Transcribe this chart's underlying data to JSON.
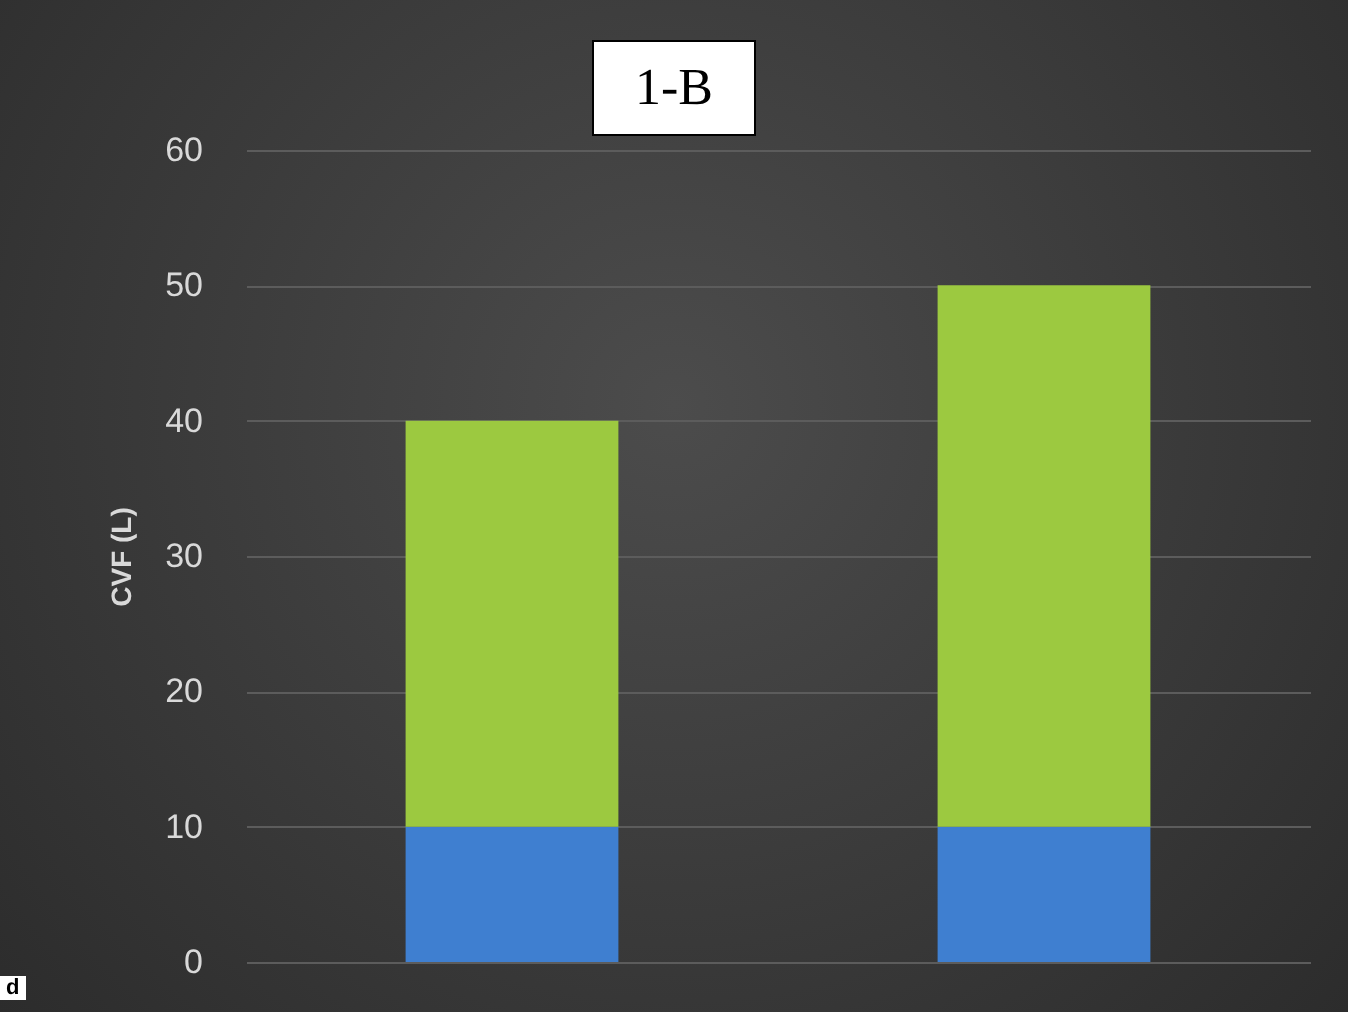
{
  "chart_data": {
    "type": "bar",
    "title": "1-B",
    "ylabel": "CVF (L)",
    "categories": [
      null,
      null
    ],
    "stacked": true,
    "series": [
      {
        "color": "#3f7fd0",
        "values": [
          10,
          10
        ]
      },
      {
        "color": "#9cc940",
        "values": [
          30,
          40
        ]
      }
    ],
    "ylim": [
      0,
      60
    ],
    "yticks": [
      0,
      10,
      20,
      30,
      40,
      50,
      60
    ],
    "grid": "y",
    "annotations": [
      "d"
    ]
  }
}
